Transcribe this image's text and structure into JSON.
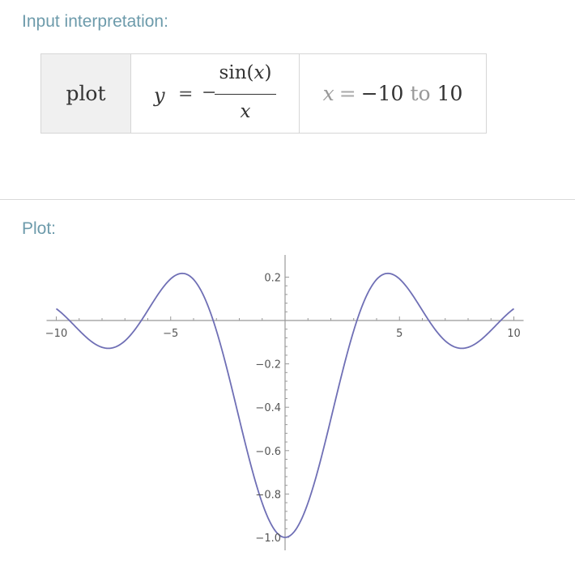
{
  "pods": {
    "input_title": "Input interpretation:",
    "plot_title": "Plot:"
  },
  "input": {
    "command": "plot",
    "formula": {
      "lhs": "y",
      "equals": "=",
      "minus": "−",
      "numerator_fn": "sin(",
      "numerator_var": "x",
      "numerator_close": ")",
      "denominator": "x"
    },
    "range": {
      "var": "x",
      "equals": "=",
      "from": "−10",
      "to_word": "to",
      "to": "10"
    }
  },
  "colors": {
    "curve": "#6f6fb5",
    "axis": "#999999",
    "pod_title": "#6d9bab"
  },
  "chart_data": {
    "type": "line",
    "function": "-sin(x)/x",
    "xlim": [
      -10,
      10
    ],
    "ylim": [
      -1.0,
      0.22
    ],
    "x_ticks": [
      -10,
      -5,
      5,
      10
    ],
    "x_tick_labels": [
      "−10",
      "−5",
      "5",
      "10"
    ],
    "y_ticks": [
      0.2,
      -0.2,
      -0.4,
      -0.6,
      -0.8,
      -1.0
    ],
    "y_tick_labels": [
      "0.2",
      "−0.2",
      "−0.4",
      "−0.6",
      "−0.8",
      "−1.0"
    ],
    "series": [
      {
        "x": [
          -10,
          -9,
          -8,
          -7,
          -6,
          -5,
          -4,
          -3,
          -2,
          -1,
          0,
          1,
          2,
          3,
          4,
          5,
          6,
          7,
          8,
          9,
          10
        ],
        "y": [
          0.054,
          -0.046,
          -0.124,
          -0.094,
          0.047,
          0.192,
          0.189,
          -0.047,
          -0.455,
          -0.841,
          -1.0,
          -0.841,
          -0.455,
          -0.047,
          0.189,
          0.192,
          0.047,
          -0.094,
          -0.124,
          -0.046,
          0.054
        ]
      }
    ],
    "grid": false,
    "legend": "none"
  }
}
